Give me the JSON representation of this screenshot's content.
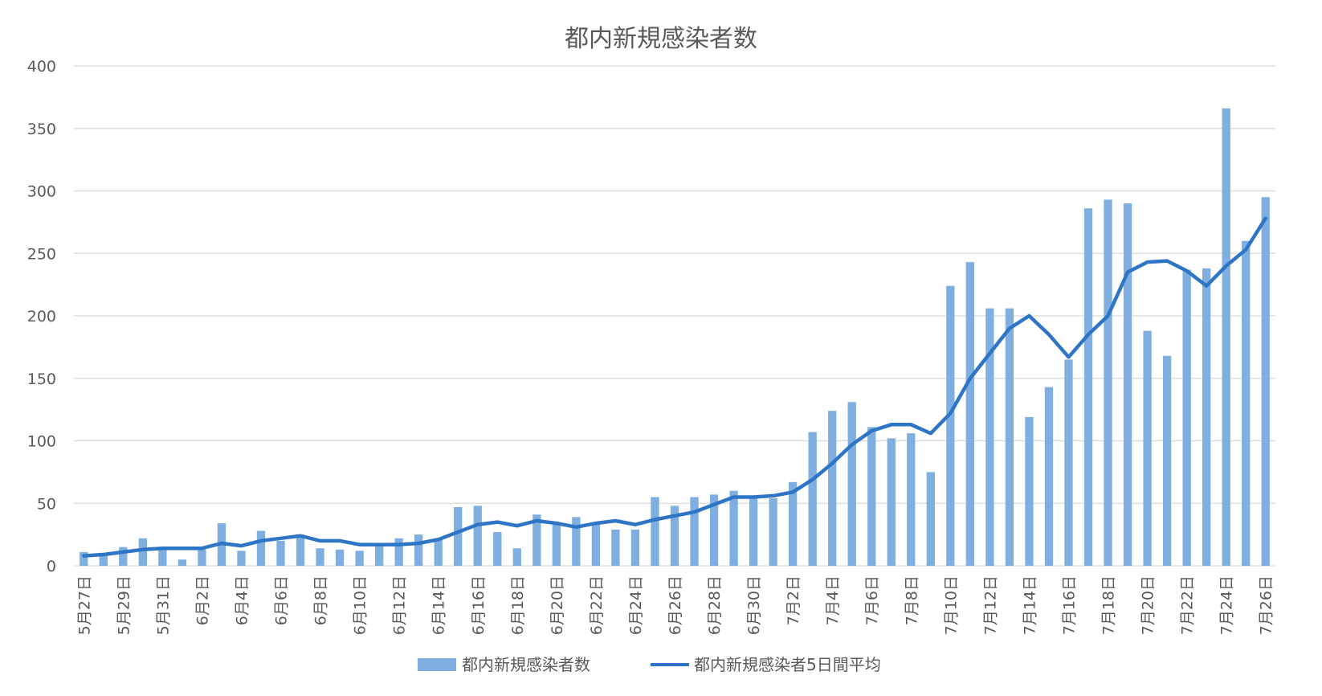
{
  "chart_data": {
    "type": "bar",
    "title": "都内新規感染者数",
    "xlabel": "",
    "ylabel": "",
    "ylim": [
      0,
      400
    ],
    "yticks": [
      0,
      50,
      100,
      150,
      200,
      250,
      300,
      350,
      400
    ],
    "grid": true,
    "legend_position": "bottom",
    "colors": {
      "bar": "#7eafe0",
      "line": "#2e75c5",
      "grid": "#d9d9d9",
      "text": "#595959"
    },
    "categories": [
      "5月27日",
      "5月28日",
      "5月29日",
      "5月30日",
      "5月31日",
      "6月1日",
      "6月2日",
      "6月3日",
      "6月4日",
      "6月5日",
      "6月6日",
      "6月7日",
      "6月8日",
      "6月9日",
      "6月10日",
      "6月11日",
      "6月12日",
      "6月13日",
      "6月14日",
      "6月15日",
      "6月16日",
      "6月17日",
      "6月18日",
      "6月19日",
      "6月20日",
      "6月21日",
      "6月22日",
      "6月23日",
      "6月24日",
      "6月25日",
      "6月26日",
      "6月27日",
      "6月28日",
      "6月29日",
      "6月30日",
      "7月1日",
      "7月2日",
      "7月3日",
      "7月4日",
      "7月5日",
      "7月6日",
      "7月7日",
      "7月8日",
      "7月9日",
      "7月10日",
      "7月11日",
      "7月12日",
      "7月13日",
      "7月14日",
      "7月15日",
      "7月16日",
      "7月17日",
      "7月18日",
      "7月19日",
      "7月20日",
      "7月21日",
      "7月22日",
      "7月23日",
      "7月24日",
      "7月25日",
      "7月26日"
    ],
    "tick_labels": [
      "5月27日",
      "5月29日",
      "5月31日",
      "6月2日",
      "6月4日",
      "6月6日",
      "6月8日",
      "6月10日",
      "6月12日",
      "6月14日",
      "6月16日",
      "6月18日",
      "6月20日",
      "6月22日",
      "6月24日",
      "6月26日",
      "6月28日",
      "6月30日",
      "7月2日",
      "7月4日",
      "7月6日",
      "7月8日",
      "7月10日",
      "7月12日",
      "7月14日",
      "7月16日",
      "7月18日",
      "7月20日",
      "7月22日",
      "7月24日",
      "7月26日"
    ],
    "series": [
      {
        "name": "都内新規感染者数",
        "type": "bar",
        "values": [
          11,
          10,
          15,
          22,
          15,
          5,
          13,
          34,
          12,
          28,
          20,
          25,
          14,
          13,
          12,
          16,
          22,
          25,
          22,
          47,
          48,
          27,
          14,
          41,
          34,
          39,
          33,
          29,
          29,
          55,
          48,
          55,
          57,
          60,
          54,
          54,
          67,
          107,
          124,
          131,
          111,
          102,
          106,
          75,
          224,
          243,
          206,
          206,
          119,
          143,
          165,
          286,
          293,
          290,
          188,
          168,
          237,
          238,
          366,
          260,
          295
        ]
      },
      {
        "name": "都内新規感染者5日間平均",
        "type": "line",
        "values": [
          8,
          9,
          11,
          13,
          14,
          14,
          14,
          18,
          16,
          20,
          22,
          24,
          20,
          20,
          17,
          17,
          17,
          18,
          21,
          27,
          33,
          35,
          32,
          36,
          34,
          31,
          34,
          36,
          33,
          37,
          40,
          43,
          49,
          55,
          55,
          56,
          59,
          69,
          82,
          97,
          108,
          113,
          113,
          106,
          122,
          150,
          170,
          190,
          200,
          185,
          167,
          185,
          200,
          235,
          243,
          244,
          236,
          224,
          240,
          253,
          278
        ]
      }
    ]
  }
}
